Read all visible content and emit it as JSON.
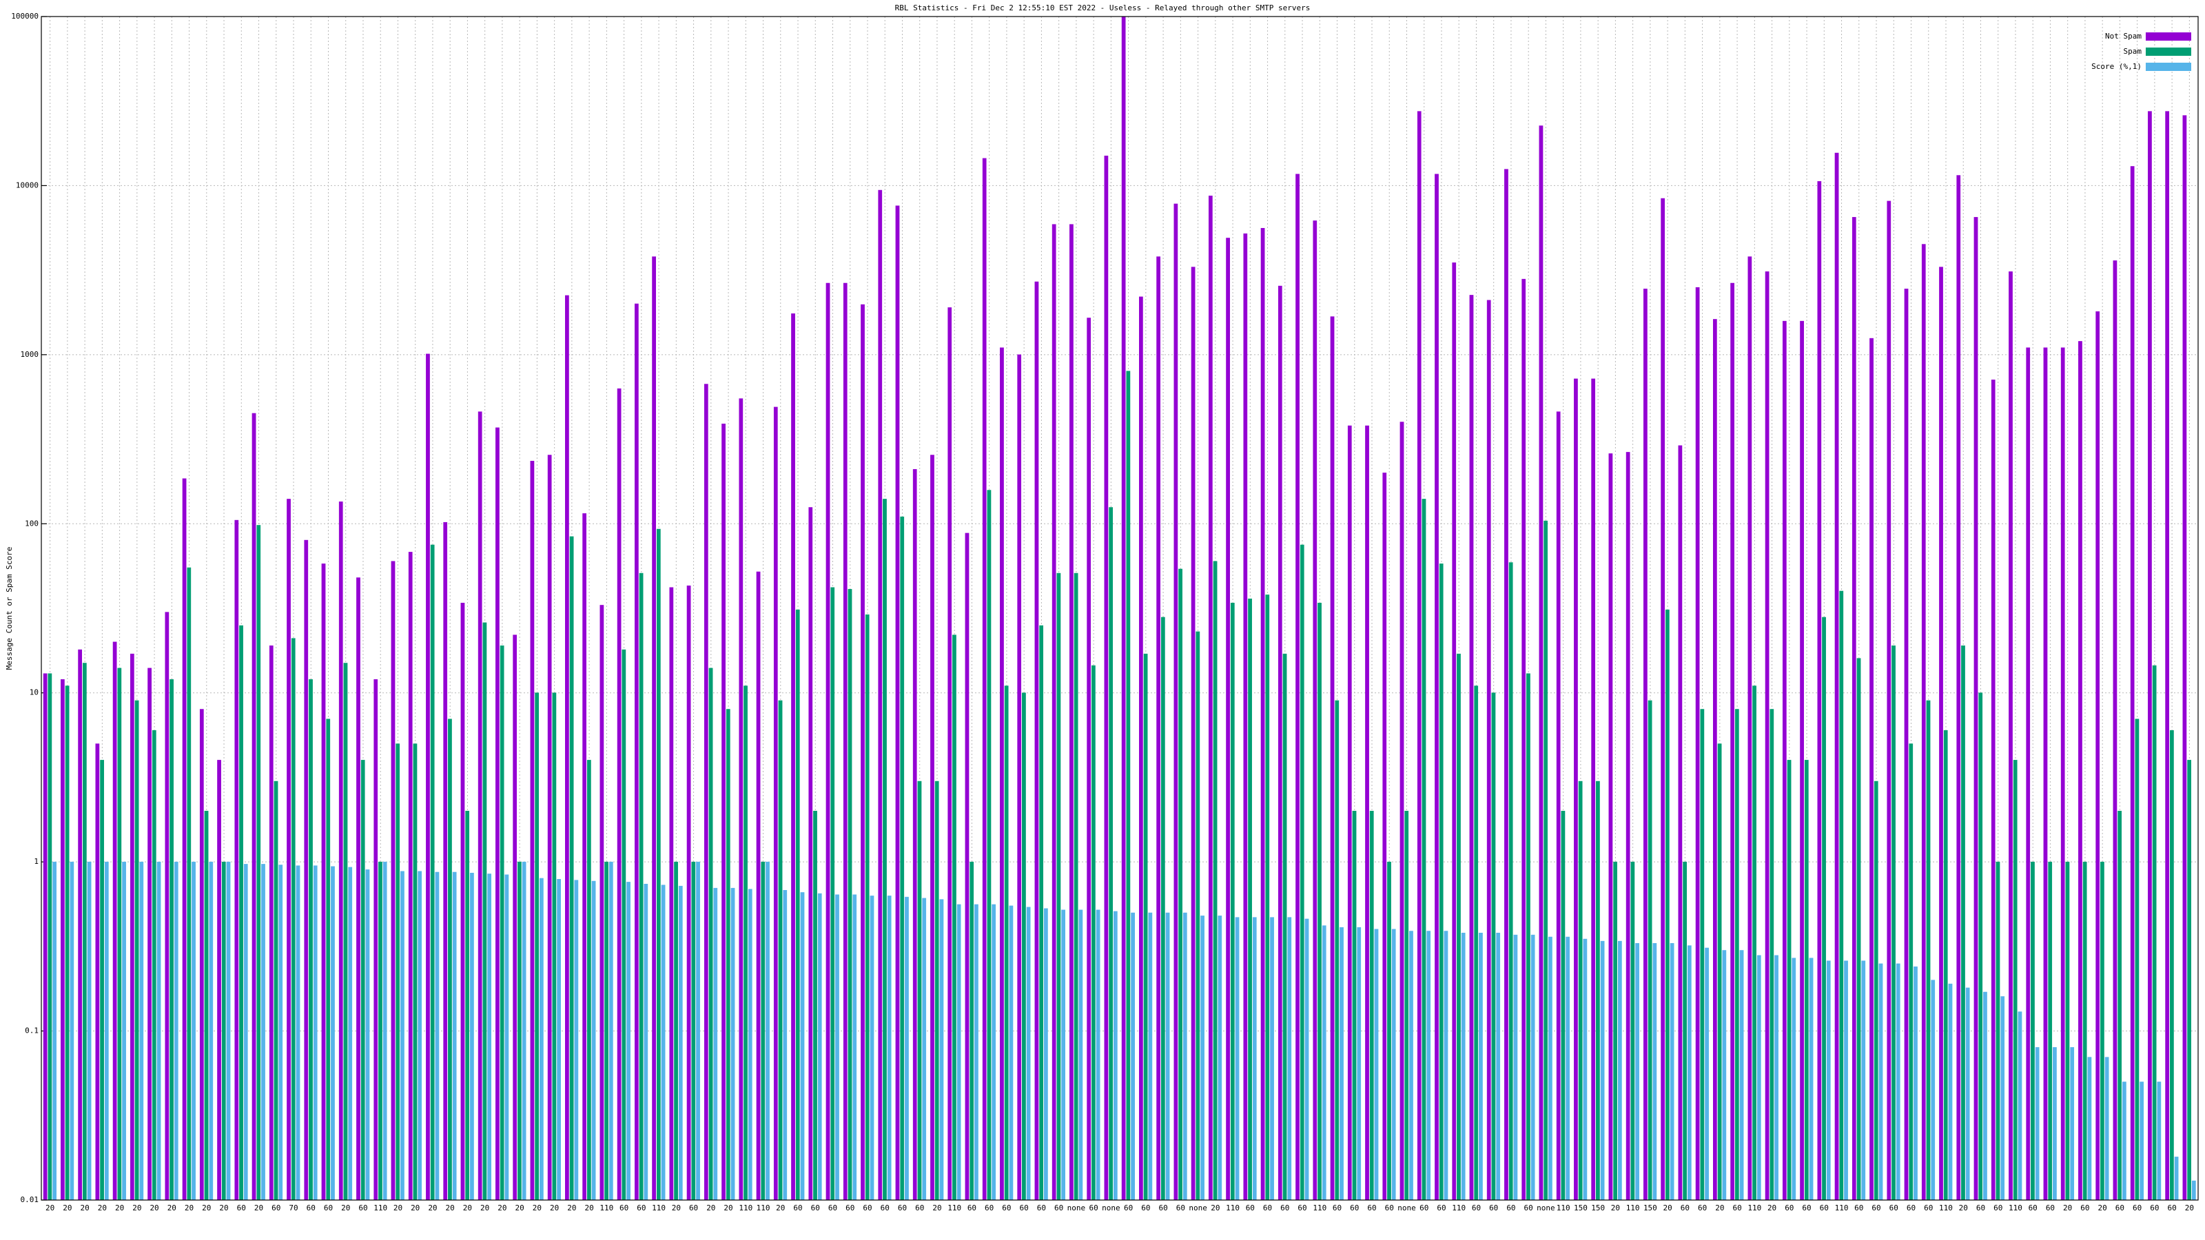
{
  "chart_data": {
    "type": "bar",
    "title": "RBL Statistics - Fri Dec  2 12:55:10 EST 2022 - Useless - Relayed through other SMTP servers",
    "y_label": "Message Count or Spam Score",
    "y_log": true,
    "grid": true,
    "legend": "top-right",
    "ylim": [
      0.01,
      100000
    ],
    "yticks": [
      0.01,
      0.1,
      1,
      10,
      100,
      1000,
      10000,
      100000
    ],
    "categories": [
      "20",
      "20",
      "20",
      "20",
      "20",
      "20",
      "20",
      "20",
      "20",
      "20",
      "20",
      "60",
      "20",
      "60",
      "70",
      "60",
      "60",
      "20",
      "60",
      "110",
      "20",
      "20",
      "20",
      "20",
      "20",
      "20",
      "20",
      "20",
      "20",
      "20",
      "20",
      "20",
      "110",
      "60",
      "60",
      "110",
      "20",
      "60",
      "20",
      "20",
      "110",
      "110",
      "20",
      "60",
      "60",
      "60",
      "60",
      "60",
      "60",
      "60",
      "60",
      "20",
      "110",
      "60",
      "60",
      "60",
      "60",
      "60",
      "60",
      "none",
      "60",
      "none",
      "60",
      "60",
      "60",
      "60",
      "none",
      "20",
      "110",
      "60",
      "60",
      "60",
      "60",
      "110",
      "60",
      "60",
      "60",
      "60",
      "none",
      "60",
      "60",
      "110",
      "60",
      "60",
      "60",
      "60",
      "none",
      "110",
      "150",
      "150",
      "20",
      "110",
      "150",
      "20",
      "60",
      "60",
      "20",
      "60",
      "110",
      "20",
      "60",
      "60",
      "60",
      "110",
      "60",
      "60",
      "60",
      "60",
      "60",
      "110",
      "20",
      "60",
      "60",
      "110",
      "60",
      "60",
      "20",
      "60",
      "20",
      "60",
      "60",
      "60",
      "60",
      "20"
    ],
    "series": [
      {
        "name": "Not Spam",
        "color": "#9400d3",
        "values": [
          13,
          12,
          18,
          5,
          20,
          17,
          14,
          30,
          185,
          8,
          4,
          105,
          450,
          19,
          140,
          80,
          58,
          135,
          48,
          12,
          60,
          68,
          1010,
          102,
          34,
          460,
          370,
          22,
          235,
          255,
          2240,
          115,
          33,
          630,
          2000,
          3800,
          42,
          43,
          670,
          390,
          550,
          52,
          490,
          1750,
          125,
          2650,
          2650,
          1980,
          9400,
          7600,
          210,
          255,
          1900,
          88,
          14500,
          1100,
          1000,
          2700,
          5900,
          5900,
          1650,
          15000,
          100000,
          2200,
          3800,
          7800,
          3300,
          8700,
          4900,
          5200,
          5600,
          2550,
          11700,
          6200,
          1680,
          380,
          380,
          200,
          400,
          27500,
          11700,
          3500,
          2250,
          2100,
          12500,
          2800,
          22600,
          460,
          720,
          720,
          260,
          265,
          2450,
          8400,
          290,
          2500,
          1620,
          2650,
          3800,
          3100,
          1580,
          1580,
          10600,
          15600,
          6500,
          1250,
          8100,
          2450,
          4500,
          3300,
          11500,
          6500,
          710,
          3100,
          1100,
          1100,
          1100,
          1200,
          1800,
          3600,
          13000,
          27500,
          27500,
          26000
        ]
      },
      {
        "name": "Spam",
        "color": "#009e73",
        "values": [
          13,
          11,
          15,
          4,
          14,
          9,
          6,
          12,
          55,
          2,
          1,
          25,
          98,
          3,
          21,
          12,
          7,
          15,
          4,
          1,
          5,
          5,
          75,
          7,
          2,
          26,
          19,
          1,
          10,
          10,
          84,
          4,
          1,
          18,
          51,
          93,
          1,
          1,
          14,
          8,
          11,
          1,
          9,
          31,
          2,
          42,
          41,
          29,
          140,
          110,
          3,
          3,
          22,
          1,
          158,
          11,
          10,
          25,
          51,
          51,
          14.5,
          125,
          800,
          17,
          28,
          54,
          23,
          60,
          34,
          36,
          38,
          17,
          75,
          34,
          9,
          2,
          2,
          1,
          2,
          140,
          58,
          17,
          11,
          10,
          59,
          13,
          104,
          2,
          3,
          3,
          1,
          1,
          9,
          31,
          1,
          8,
          5,
          8,
          11,
          8,
          4,
          4,
          28,
          40,
          16,
          3,
          19,
          5,
          9,
          6,
          19,
          10,
          1,
          4,
          1,
          1,
          1,
          1,
          1,
          2,
          7,
          14.5,
          6,
          4
        ]
      },
      {
        "name": "Score (%,1)",
        "color": "#56b4e9",
        "values": [
          1,
          1,
          1,
          1,
          1,
          1,
          1,
          1,
          1,
          1,
          1,
          0.97,
          0.97,
          0.96,
          0.95,
          0.95,
          0.94,
          0.93,
          0.9,
          1,
          0.88,
          0.88,
          0.87,
          0.87,
          0.86,
          0.85,
          0.84,
          1,
          0.8,
          0.79,
          0.78,
          0.77,
          1,
          0.76,
          0.74,
          0.73,
          0.72,
          1,
          0.7,
          0.7,
          0.69,
          1,
          0.68,
          0.66,
          0.65,
          0.64,
          0.64,
          0.63,
          0.63,
          0.62,
          0.61,
          0.6,
          0.56,
          0.56,
          0.56,
          0.55,
          0.54,
          0.53,
          0.52,
          0.52,
          0.52,
          0.51,
          0.5,
          0.5,
          0.5,
          0.5,
          0.48,
          0.48,
          0.47,
          0.47,
          0.47,
          0.47,
          0.46,
          0.42,
          0.41,
          0.41,
          0.4,
          0.4,
          0.39,
          0.39,
          0.39,
          0.38,
          0.38,
          0.38,
          0.37,
          0.37,
          0.36,
          0.36,
          0.35,
          0.34,
          0.34,
          0.33,
          0.33,
          0.33,
          0.32,
          0.31,
          0.3,
          0.3,
          0.28,
          0.28,
          0.27,
          0.27,
          0.26,
          0.26,
          0.26,
          0.25,
          0.25,
          0.24,
          0.2,
          0.19,
          0.18,
          0.17,
          0.16,
          0.13,
          0.08,
          0.08,
          0.08,
          0.07,
          0.07,
          0.05,
          0.05,
          0.05,
          0.018,
          0.013
        ]
      }
    ]
  }
}
